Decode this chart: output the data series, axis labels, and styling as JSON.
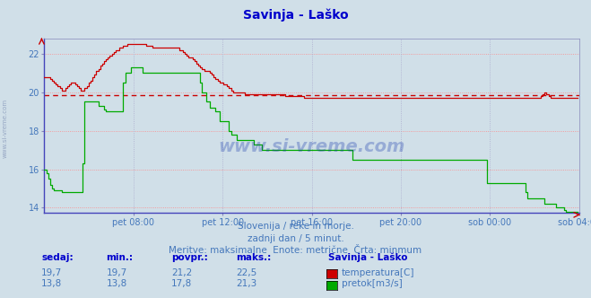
{
  "title": "Savinja - Laško",
  "title_color": "#0000cc",
  "bg_color": "#d0dfe8",
  "plot_bg_color": "#d0dfe8",
  "xlabel": "",
  "ylabel": "",
  "ylim": [
    13.72,
    22.78
  ],
  "yticks": [
    14,
    16,
    18,
    20,
    22
  ],
  "xtick_labels": [
    "pet 08:00",
    "pet 12:00",
    "pet 16:00",
    "pet 20:00",
    "sob 00:00",
    "sob 04:00"
  ],
  "avg_line_y": 19.83,
  "avg_line_color": "#cc0000",
  "watermark": "www.si-vreme.com",
  "subtitle1": "Slovenija / reke in morje.",
  "subtitle2": "zadnji dan / 5 minut.",
  "subtitle3": "Meritve: maksimalne  Enote: metrične  Črta: minmum",
  "subtitle_color": "#4477bb",
  "legend_title": "Savinja - Laško",
  "legend_temp_label": "temperatura[C]",
  "legend_flow_label": "pretok[m3/s]",
  "temp_color": "#cc0000",
  "flow_color": "#00aa00",
  "grid_h_color": "#ff8888",
  "grid_v_color": "#aaaacc",
  "table_headers": [
    "sedaj:",
    "min.:",
    "povpr.:",
    "maks.:"
  ],
  "table_temp": [
    "19,7",
    "19,7",
    "21,2",
    "22,5"
  ],
  "table_flow": [
    "13,8",
    "13,8",
    "17,8",
    "21,3"
  ],
  "temp_data": [
    20.8,
    20.8,
    20.8,
    20.7,
    20.6,
    20.5,
    20.4,
    20.3,
    20.2,
    20.1,
    20.1,
    20.2,
    20.3,
    20.4,
    20.5,
    20.5,
    20.4,
    20.3,
    20.2,
    20.1,
    20.1,
    20.2,
    20.3,
    20.5,
    20.6,
    20.8,
    20.9,
    21.1,
    21.2,
    21.4,
    21.5,
    21.6,
    21.7,
    21.8,
    21.9,
    22.0,
    22.1,
    22.2,
    22.2,
    22.3,
    22.3,
    22.4,
    22.4,
    22.5,
    22.5,
    22.5,
    22.5,
    22.5,
    22.5,
    22.5,
    22.5,
    22.5,
    22.5,
    22.4,
    22.4,
    22.4,
    22.3,
    22.3,
    22.3,
    22.3,
    22.3,
    22.3,
    22.3,
    22.3,
    22.3,
    22.3,
    22.3,
    22.3,
    22.3,
    22.3,
    22.2,
    22.2,
    22.1,
    22.0,
    21.9,
    21.8,
    21.8,
    21.7,
    21.6,
    21.5,
    21.4,
    21.3,
    21.2,
    21.1,
    21.1,
    21.1,
    21.0,
    20.9,
    20.8,
    20.7,
    20.6,
    20.5,
    20.5,
    20.4,
    20.4,
    20.3,
    20.2,
    20.1,
    20.0,
    20.0,
    20.0,
    20.0,
    20.0,
    20.0,
    19.9,
    19.9,
    19.9,
    19.9,
    19.9,
    19.9,
    19.9,
    19.9,
    19.9,
    19.9,
    19.9,
    19.9,
    19.9,
    19.9,
    19.9,
    19.9,
    19.9,
    19.9,
    19.9,
    19.9,
    19.9,
    19.8,
    19.8,
    19.8,
    19.8,
    19.8,
    19.8,
    19.8,
    19.8,
    19.8,
    19.8,
    19.7,
    19.7,
    19.7,
    19.7,
    19.7,
    19.7,
    19.7,
    19.7,
    19.7,
    19.7,
    19.7,
    19.7,
    19.7,
    19.7,
    19.7,
    19.7,
    19.7,
    19.7,
    19.7,
    19.7,
    19.7,
    19.7,
    19.7,
    19.7,
    19.7,
    19.7,
    19.7,
    19.7,
    19.7,
    19.7,
    19.7,
    19.7,
    19.7,
    19.7,
    19.7,
    19.7,
    19.7,
    19.7,
    19.7,
    19.7,
    19.7,
    19.7,
    19.7,
    19.7,
    19.7,
    19.7,
    19.7,
    19.7,
    19.7,
    19.7,
    19.7,
    19.7,
    19.7,
    19.7,
    19.7,
    19.7,
    19.7,
    19.7,
    19.7,
    19.7,
    19.7,
    19.7,
    19.7,
    19.7,
    19.7,
    19.7,
    19.7,
    19.7,
    19.7,
    19.7,
    19.7,
    19.7,
    19.7,
    19.7,
    19.7,
    19.7,
    19.7,
    19.7,
    19.7,
    19.7,
    19.7,
    19.7,
    19.7,
    19.7,
    19.7,
    19.7,
    19.7,
    19.7,
    19.7,
    19.7,
    19.7,
    19.7,
    19.7,
    19.7,
    19.7,
    19.7,
    19.7,
    19.7,
    19.7,
    19.7,
    19.7,
    19.7,
    19.7,
    19.7,
    19.7,
    19.7,
    19.7,
    19.7,
    19.7,
    19.7,
    19.7,
    19.7,
    19.7,
    19.7,
    19.7,
    19.7,
    19.7,
    19.7,
    19.7,
    19.7,
    19.7,
    19.7,
    19.7,
    19.8,
    19.9,
    20.0,
    19.9,
    19.8,
    19.7,
    19.7,
    19.7,
    19.7,
    19.7,
    19.7,
    19.7,
    19.7,
    19.7,
    19.7,
    19.7,
    19.7,
    19.7,
    19.7,
    19.7
  ],
  "flow_data": [
    16.0,
    15.8,
    15.5,
    15.2,
    15.0,
    14.9,
    14.9,
    14.9,
    14.9,
    14.8,
    14.8,
    14.8,
    14.8,
    14.8,
    14.8,
    14.8,
    14.8,
    14.8,
    14.8,
    14.8,
    16.3,
    19.5,
    19.5,
    19.5,
    19.5,
    19.5,
    19.5,
    19.5,
    19.3,
    19.3,
    19.3,
    19.1,
    19.0,
    19.0,
    19.0,
    19.0,
    19.0,
    19.0,
    19.0,
    19.0,
    19.0,
    20.5,
    21.0,
    21.0,
    21.0,
    21.3,
    21.3,
    21.3,
    21.3,
    21.3,
    21.3,
    21.0,
    21.0,
    21.0,
    21.0,
    21.0,
    21.0,
    21.0,
    21.0,
    21.0,
    21.0,
    21.0,
    21.0,
    21.0,
    21.0,
    21.0,
    21.0,
    21.0,
    21.0,
    21.0,
    21.0,
    21.0,
    21.0,
    21.0,
    21.0,
    21.0,
    21.0,
    21.0,
    21.0,
    21.0,
    21.0,
    20.5,
    20.0,
    20.0,
    19.5,
    19.5,
    19.2,
    19.2,
    19.2,
    19.0,
    19.0,
    18.5,
    18.5,
    18.5,
    18.5,
    18.5,
    18.0,
    17.8,
    17.8,
    17.8,
    17.5,
    17.5,
    17.5,
    17.5,
    17.5,
    17.5,
    17.5,
    17.5,
    17.5,
    17.3,
    17.3,
    17.3,
    17.3,
    17.0,
    17.0,
    17.0,
    17.0,
    17.0,
    17.0,
    17.0,
    17.0,
    17.0,
    17.0,
    17.0,
    17.0,
    17.0,
    17.0,
    17.0,
    17.0,
    17.0,
    17.0,
    17.0,
    17.0,
    17.0,
    17.0,
    17.0,
    17.0,
    17.0,
    17.0,
    17.0,
    17.0,
    17.0,
    17.0,
    17.0,
    17.0,
    17.0,
    17.0,
    17.0,
    17.0,
    17.0,
    17.0,
    17.0,
    17.0,
    17.0,
    17.0,
    17.0,
    17.0,
    17.0,
    17.0,
    17.0,
    16.5,
    16.5,
    16.5,
    16.5,
    16.5,
    16.5,
    16.5,
    16.5,
    16.5,
    16.5,
    16.5,
    16.5,
    16.5,
    16.5,
    16.5,
    16.5,
    16.5,
    16.5,
    16.5,
    16.5,
    16.5,
    16.5,
    16.5,
    16.5,
    16.5,
    16.5,
    16.5,
    16.5,
    16.5,
    16.5,
    16.5,
    16.5,
    16.5,
    16.5,
    16.5,
    16.5,
    16.5,
    16.5,
    16.5,
    16.5,
    16.5,
    16.5,
    16.5,
    16.5,
    16.5,
    16.5,
    16.5,
    16.5,
    16.5,
    16.5,
    16.5,
    16.5,
    16.5,
    16.5,
    16.5,
    16.5,
    16.5,
    16.5,
    16.5,
    16.5,
    16.5,
    16.5,
    16.5,
    16.5,
    16.5,
    16.5,
    16.5,
    16.5,
    16.5,
    16.5,
    15.3,
    15.3,
    15.3,
    15.3,
    15.3,
    15.3,
    15.3,
    15.3,
    15.3,
    15.3,
    15.3,
    15.3,
    15.3,
    15.3,
    15.3,
    15.3,
    15.3,
    15.3,
    15.3,
    15.3,
    14.8,
    14.5,
    14.5,
    14.5,
    14.5,
    14.5,
    14.5,
    14.5,
    14.5,
    14.5,
    14.2,
    14.2,
    14.2,
    14.2,
    14.2,
    14.2,
    14.0,
    14.0,
    14.0,
    14.0,
    13.9,
    13.8,
    13.8,
    13.8,
    13.8,
    13.8,
    13.8,
    13.8
  ]
}
